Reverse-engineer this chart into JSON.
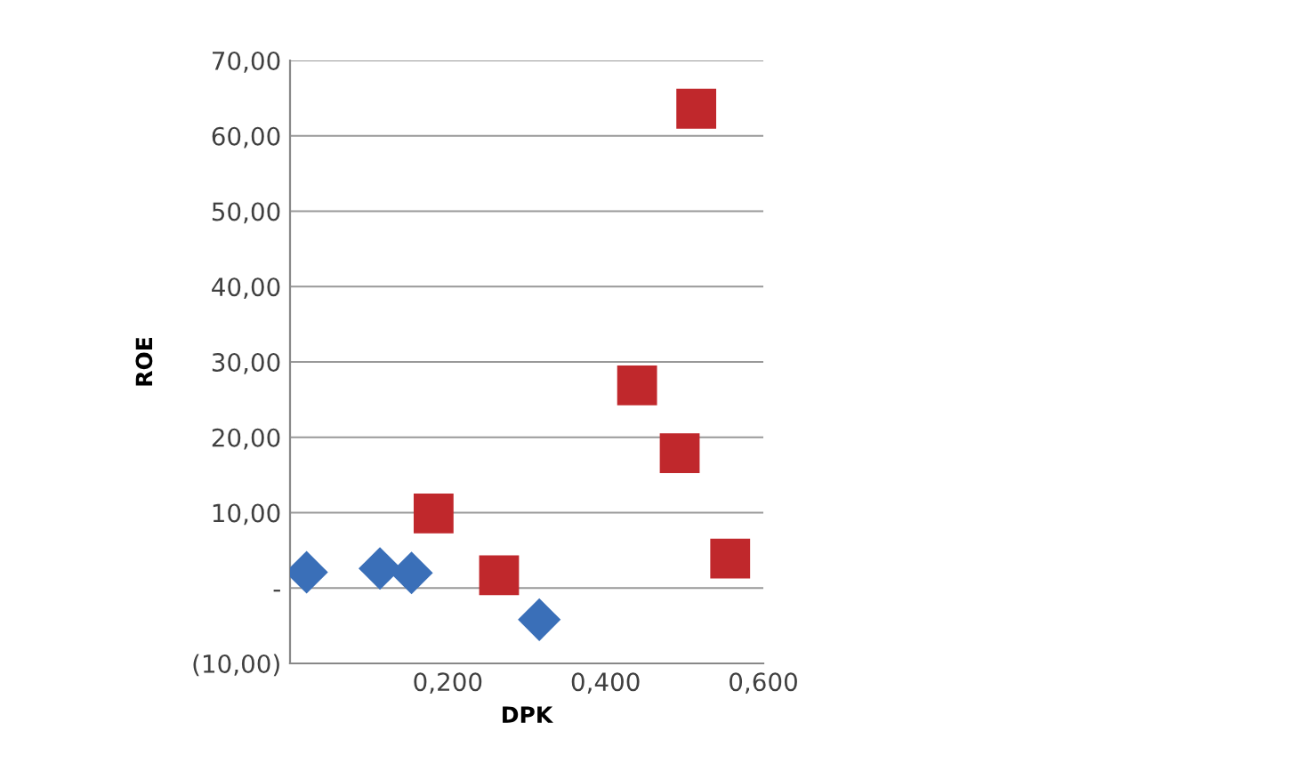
{
  "chart_data": {
    "type": "scatter",
    "xlabel": "DPK",
    "ylabel": "ROE",
    "series": [
      {
        "color": "#3a6fb8",
        "marker": "diamond",
        "x": [
          0.021,
          0.114,
          0.154,
          0.316
        ],
        "values": [
          2.1,
          2.6,
          2.0,
          -4.2
        ]
      },
      {
        "color": "#c0282c",
        "marker": "square",
        "x": [
          0.182,
          0.265,
          0.44,
          0.494,
          0.515,
          0.558
        ],
        "values": [
          9.9,
          1.7,
          26.9,
          17.9,
          63.6,
          3.9
        ]
      }
    ],
    "xlim": [
      0,
      0.6
    ],
    "xticks": [
      {
        "value": 0.2,
        "label": "0,200"
      },
      {
        "value": 0.4,
        "label": "0,400"
      },
      {
        "value": 0.6,
        "label": "0,600"
      }
    ],
    "ylim": [
      -10,
      70
    ],
    "yticks": [
      {
        "value": -10,
        "label": "(10,00)"
      },
      {
        "value": 0,
        "label": "-"
      },
      {
        "value": 10,
        "label": "10,00"
      },
      {
        "value": 20,
        "label": "20,00"
      },
      {
        "value": 30,
        "label": "30,00"
      },
      {
        "value": 40,
        "label": "40,00"
      },
      {
        "value": 50,
        "label": "50,00"
      },
      {
        "value": 60,
        "label": "60,00"
      },
      {
        "value": 70,
        "label": "70,00"
      }
    ],
    "grid": "y"
  }
}
